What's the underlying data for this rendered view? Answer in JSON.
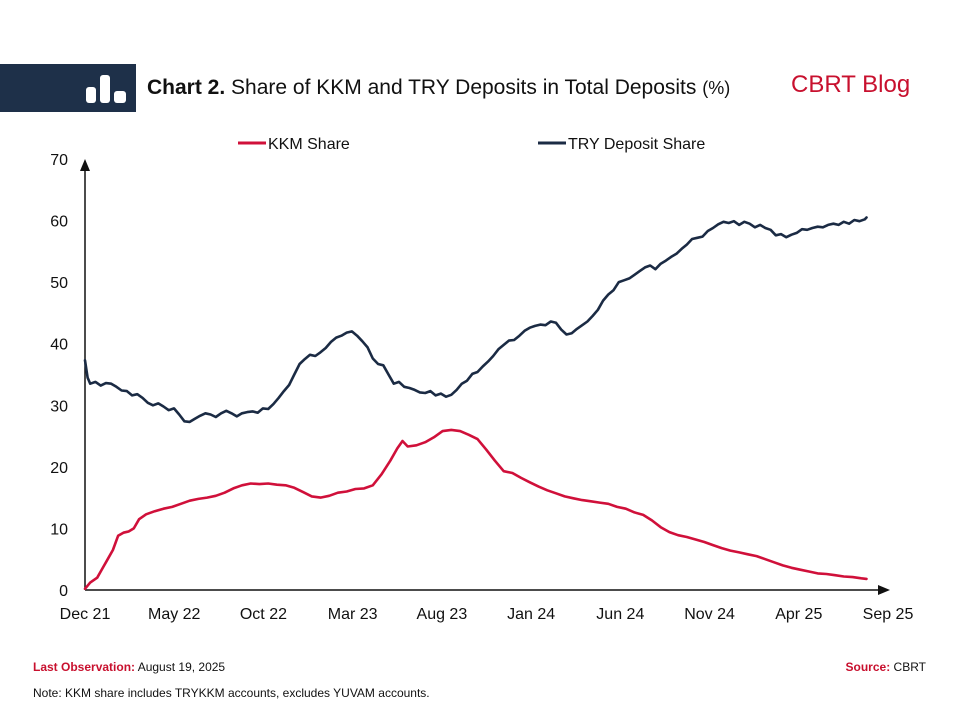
{
  "header": {
    "title_bold": "Chart 2.",
    "title_text": "Share of KKM and TRY Deposits in Total Deposits",
    "title_unit": "(%)",
    "brand": "CBRT Blog",
    "logo_icon": "bar-chart-icon"
  },
  "colors": {
    "header_band": "#1e3049",
    "brand": "#c8102e",
    "kkm": "#d0103a",
    "try": "#1b2b44"
  },
  "chart_data": {
    "type": "line",
    "title": "Share of KKM and TRY Deposits in Total Deposits (%)",
    "xlabel": "",
    "ylabel": "",
    "x_ticks": [
      "Dec 21",
      "May 22",
      "Oct 22",
      "Mar 23",
      "Aug 23",
      "Jan 24",
      "Jun 24",
      "Nov 24",
      "Apr 25",
      "Sep 25"
    ],
    "y_ticks": [
      0,
      10,
      20,
      30,
      40,
      50,
      60,
      70
    ],
    "ylim": [
      0,
      70
    ],
    "x_unit": "months since Dec 2021",
    "xlim": [
      0,
      45
    ],
    "grid": false,
    "legend_position": "top",
    "series": [
      {
        "name": "KKM Share",
        "color": "#d0103a",
        "points": [
          [
            0,
            0.2
          ],
          [
            0.3,
            1.2
          ],
          [
            0.7,
            2.0
          ],
          [
            1.0,
            3.5
          ],
          [
            1.3,
            5.0
          ],
          [
            1.6,
            6.5
          ],
          [
            1.9,
            8.8
          ],
          [
            2.2,
            9.3
          ],
          [
            2.5,
            9.5
          ],
          [
            2.8,
            10.0
          ],
          [
            3.1,
            11.5
          ],
          [
            3.5,
            12.3
          ],
          [
            4.0,
            12.8
          ],
          [
            4.5,
            13.2
          ],
          [
            5.0,
            13.5
          ],
          [
            5.5,
            14.0
          ],
          [
            6.0,
            14.5
          ],
          [
            6.5,
            14.8
          ],
          [
            7.0,
            15.0
          ],
          [
            7.5,
            15.3
          ],
          [
            8.0,
            15.8
          ],
          [
            8.5,
            16.5
          ],
          [
            9.0,
            17.0
          ],
          [
            9.5,
            17.3
          ],
          [
            10.0,
            17.2
          ],
          [
            10.5,
            17.3
          ],
          [
            11.0,
            17.1
          ],
          [
            11.5,
            17.0
          ],
          [
            12.0,
            16.6
          ],
          [
            12.5,
            15.9
          ],
          [
            13.0,
            15.2
          ],
          [
            13.5,
            15.0
          ],
          [
            14.0,
            15.3
          ],
          [
            14.5,
            15.8
          ],
          [
            15.0,
            16.0
          ],
          [
            15.5,
            16.4
          ],
          [
            16.0,
            16.5
          ],
          [
            16.5,
            17.0
          ],
          [
            17.0,
            18.8
          ],
          [
            17.5,
            21.0
          ],
          [
            17.9,
            23.0
          ],
          [
            18.2,
            24.2
          ],
          [
            18.5,
            23.3
          ],
          [
            19.0,
            23.5
          ],
          [
            19.5,
            24.0
          ],
          [
            20.0,
            24.8
          ],
          [
            20.5,
            25.8
          ],
          [
            21.0,
            26.0
          ],
          [
            21.5,
            25.8
          ],
          [
            22.0,
            25.2
          ],
          [
            22.5,
            24.5
          ],
          [
            23.0,
            22.8
          ],
          [
            23.5,
            21.0
          ],
          [
            24.0,
            19.3
          ],
          [
            24.5,
            19.0
          ],
          [
            25.0,
            18.2
          ],
          [
            25.5,
            17.5
          ],
          [
            26.0,
            16.8
          ],
          [
            26.5,
            16.2
          ],
          [
            27.0,
            15.7
          ],
          [
            27.5,
            15.2
          ],
          [
            28.0,
            14.9
          ],
          [
            28.5,
            14.6
          ],
          [
            29.0,
            14.4
          ],
          [
            29.5,
            14.2
          ],
          [
            30.0,
            14.0
          ],
          [
            30.5,
            13.5
          ],
          [
            31.0,
            13.2
          ],
          [
            31.5,
            12.6
          ],
          [
            32.0,
            12.2
          ],
          [
            32.5,
            11.3
          ],
          [
            33.0,
            10.2
          ],
          [
            33.5,
            9.4
          ],
          [
            34.0,
            8.9
          ],
          [
            34.5,
            8.6
          ],
          [
            35.0,
            8.2
          ],
          [
            35.5,
            7.8
          ],
          [
            36.0,
            7.3
          ],
          [
            36.5,
            6.8
          ],
          [
            37.0,
            6.4
          ],
          [
            37.5,
            6.1
          ],
          [
            38.0,
            5.8
          ],
          [
            38.5,
            5.5
          ],
          [
            39.0,
            5.0
          ],
          [
            39.5,
            4.5
          ],
          [
            40.0,
            4.0
          ],
          [
            40.5,
            3.6
          ],
          [
            41.0,
            3.3
          ],
          [
            41.5,
            3.0
          ],
          [
            42.0,
            2.7
          ],
          [
            42.5,
            2.6
          ],
          [
            43.0,
            2.4
          ],
          [
            43.5,
            2.2
          ],
          [
            44.0,
            2.1
          ],
          [
            44.5,
            1.9
          ],
          [
            44.8,
            1.8
          ]
        ]
      },
      {
        "name": "TRY Deposit Share",
        "color": "#1b2b44",
        "points": [
          [
            0,
            37.3
          ],
          [
            0.15,
            34.5
          ],
          [
            0.3,
            33.5
          ],
          [
            0.6,
            33.8
          ],
          [
            0.9,
            33.2
          ],
          [
            1.2,
            33.6
          ],
          [
            1.5,
            33.5
          ],
          [
            1.8,
            33.0
          ],
          [
            2.1,
            32.4
          ],
          [
            2.4,
            32.3
          ],
          [
            2.7,
            31.6
          ],
          [
            3.0,
            31.8
          ],
          [
            3.3,
            31.2
          ],
          [
            3.6,
            30.4
          ],
          [
            3.9,
            30.0
          ],
          [
            4.2,
            30.3
          ],
          [
            4.5,
            29.8
          ],
          [
            4.8,
            29.2
          ],
          [
            5.1,
            29.5
          ],
          [
            5.4,
            28.5
          ],
          [
            5.7,
            27.4
          ],
          [
            6.0,
            27.3
          ],
          [
            6.3,
            27.8
          ],
          [
            6.6,
            28.3
          ],
          [
            6.9,
            28.7
          ],
          [
            7.2,
            28.5
          ],
          [
            7.5,
            28.1
          ],
          [
            7.8,
            28.7
          ],
          [
            8.1,
            29.1
          ],
          [
            8.4,
            28.7
          ],
          [
            8.7,
            28.2
          ],
          [
            9.0,
            28.7
          ],
          [
            9.3,
            28.9
          ],
          [
            9.6,
            29.0
          ],
          [
            9.9,
            28.8
          ],
          [
            10.2,
            29.5
          ],
          [
            10.5,
            29.4
          ],
          [
            10.8,
            30.2
          ],
          [
            11.1,
            31.2
          ],
          [
            11.4,
            32.3
          ],
          [
            11.7,
            33.3
          ],
          [
            12.0,
            35.0
          ],
          [
            12.3,
            36.7
          ],
          [
            12.6,
            37.5
          ],
          [
            12.9,
            38.2
          ],
          [
            13.2,
            38.0
          ],
          [
            13.5,
            38.6
          ],
          [
            13.8,
            39.3
          ],
          [
            14.1,
            40.3
          ],
          [
            14.4,
            41.0
          ],
          [
            14.7,
            41.3
          ],
          [
            15.0,
            41.8
          ],
          [
            15.3,
            42.0
          ],
          [
            15.6,
            41.3
          ],
          [
            15.9,
            40.4
          ],
          [
            16.2,
            39.4
          ],
          [
            16.5,
            37.6
          ],
          [
            16.8,
            36.7
          ],
          [
            17.1,
            36.5
          ],
          [
            17.4,
            35.0
          ],
          [
            17.7,
            33.5
          ],
          [
            18.0,
            33.8
          ],
          [
            18.3,
            33.0
          ],
          [
            18.6,
            32.8
          ],
          [
            18.9,
            32.5
          ],
          [
            19.2,
            32.1
          ],
          [
            19.5,
            32.0
          ],
          [
            19.8,
            32.3
          ],
          [
            20.1,
            31.6
          ],
          [
            20.4,
            31.9
          ],
          [
            20.7,
            31.4
          ],
          [
            21.0,
            31.7
          ],
          [
            21.3,
            32.5
          ],
          [
            21.6,
            33.5
          ],
          [
            21.9,
            34.0
          ],
          [
            22.2,
            35.1
          ],
          [
            22.5,
            35.4
          ],
          [
            22.8,
            36.3
          ],
          [
            23.1,
            37.1
          ],
          [
            23.4,
            38.0
          ],
          [
            23.7,
            39.1
          ],
          [
            24.0,
            39.8
          ],
          [
            24.3,
            40.5
          ],
          [
            24.6,
            40.6
          ],
          [
            24.9,
            41.3
          ],
          [
            25.2,
            42.1
          ],
          [
            25.5,
            42.6
          ],
          [
            25.8,
            42.9
          ],
          [
            26.1,
            43.1
          ],
          [
            26.4,
            43.0
          ],
          [
            26.7,
            43.6
          ],
          [
            27.0,
            43.4
          ],
          [
            27.3,
            42.3
          ],
          [
            27.6,
            41.5
          ],
          [
            27.9,
            41.7
          ],
          [
            28.2,
            42.4
          ],
          [
            28.5,
            43.0
          ],
          [
            28.8,
            43.6
          ],
          [
            29.1,
            44.5
          ],
          [
            29.4,
            45.5
          ],
          [
            29.7,
            47.0
          ],
          [
            30.0,
            48.0
          ],
          [
            30.3,
            48.7
          ],
          [
            30.6,
            50.0
          ],
          [
            30.9,
            50.3
          ],
          [
            31.2,
            50.6
          ],
          [
            31.5,
            51.2
          ],
          [
            31.8,
            51.8
          ],
          [
            32.1,
            52.4
          ],
          [
            32.4,
            52.7
          ],
          [
            32.7,
            52.1
          ],
          [
            33.0,
            53.0
          ],
          [
            33.3,
            53.5
          ],
          [
            33.6,
            54.1
          ],
          [
            33.9,
            54.6
          ],
          [
            34.2,
            55.4
          ],
          [
            34.5,
            56.1
          ],
          [
            34.8,
            57.0
          ],
          [
            35.1,
            57.2
          ],
          [
            35.4,
            57.4
          ],
          [
            35.7,
            58.3
          ],
          [
            36.0,
            58.8
          ],
          [
            36.3,
            59.4
          ],
          [
            36.6,
            59.8
          ],
          [
            36.9,
            59.6
          ],
          [
            37.2,
            59.9
          ],
          [
            37.5,
            59.3
          ],
          [
            37.8,
            59.8
          ],
          [
            38.1,
            59.5
          ],
          [
            38.4,
            58.9
          ],
          [
            38.7,
            59.3
          ],
          [
            39.0,
            58.8
          ],
          [
            39.3,
            58.5
          ],
          [
            39.6,
            57.6
          ],
          [
            39.9,
            57.8
          ],
          [
            40.2,
            57.3
          ],
          [
            40.5,
            57.7
          ],
          [
            40.8,
            58.0
          ],
          [
            41.1,
            58.6
          ],
          [
            41.4,
            58.5
          ],
          [
            41.7,
            58.8
          ],
          [
            42.0,
            59.0
          ],
          [
            42.3,
            58.9
          ],
          [
            42.6,
            59.3
          ],
          [
            42.9,
            59.5
          ],
          [
            43.2,
            59.3
          ],
          [
            43.5,
            59.8
          ],
          [
            43.8,
            59.5
          ],
          [
            44.1,
            60.1
          ],
          [
            44.4,
            59.9
          ],
          [
            44.7,
            60.2
          ],
          [
            44.8,
            60.5
          ]
        ]
      }
    ]
  },
  "footer": {
    "last_obs_label": "Last Observation:",
    "last_obs_value": "August 19, 2025",
    "source_label": "Source:",
    "source_value": "CBRT",
    "note": "Note: KKM share includes TRYKKM accounts, excludes YUVAM accounts."
  }
}
